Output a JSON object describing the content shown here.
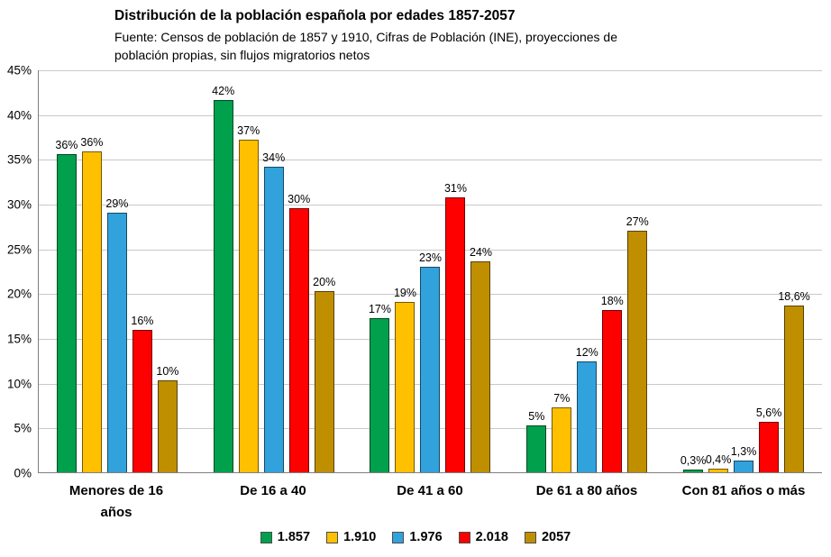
{
  "chart_data": {
    "type": "bar",
    "title": "Distribución de la población española por edades 1857-2057",
    "subtitle_lines": [
      "Fuente: Censos de población de 1857 y 1910, Cifras de Población (INE), proyecciones de",
      "población propias, sin flujos migratorios netos"
    ],
    "categories": [
      "Menores de 16\naños",
      "De 16 a 40",
      "De 41 a 60",
      "De 61 a 80 años",
      "Con 81 años o más"
    ],
    "series": [
      {
        "name": "1.857",
        "color": "#00A04C",
        "values": [
          35.5,
          41.6,
          17.2,
          5.2,
          0.3
        ],
        "labels": [
          "36%",
          "42%",
          "17%",
          "5%",
          "0,3%"
        ]
      },
      {
        "name": "1.910",
        "color": "#FFC000",
        "values": [
          35.8,
          37.2,
          19.0,
          7.3,
          0.4
        ],
        "labels": [
          "36%",
          "37%",
          "19%",
          "7%",
          "0,4%"
        ]
      },
      {
        "name": "1.976",
        "color": "#31A2DC",
        "values": [
          29.0,
          34.1,
          23.0,
          12.4,
          1.3
        ],
        "labels": [
          "29%",
          "34%",
          "23%",
          "12%",
          "1,3%"
        ]
      },
      {
        "name": "2.018",
        "color": "#FF0000",
        "values": [
          15.9,
          29.5,
          30.7,
          18.1,
          5.6
        ],
        "labels": [
          "16%",
          "30%",
          "31%",
          "18%",
          "5,6%"
        ]
      },
      {
        "name": "2057",
        "color": "#BF8F00",
        "values": [
          10.3,
          20.2,
          23.6,
          27.0,
          18.6
        ],
        "labels": [
          "10%",
          "20%",
          "24%",
          "27%",
          "18,6%"
        ]
      }
    ],
    "ylim": [
      0,
      45
    ],
    "yticks": [
      "0%",
      "5%",
      "10%",
      "15%",
      "20%",
      "25%",
      "30%",
      "35%",
      "40%",
      "45%"
    ],
    "grid": true,
    "legend_position": "bottom"
  }
}
